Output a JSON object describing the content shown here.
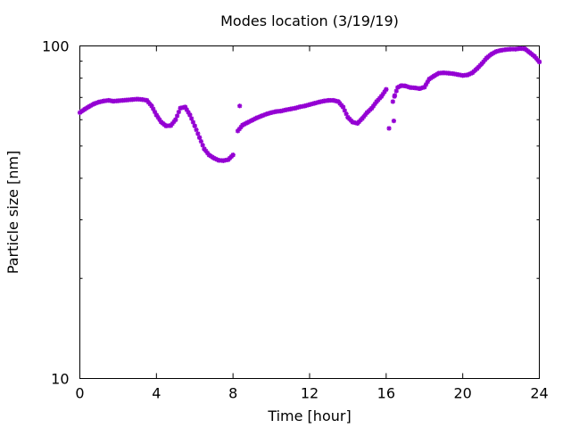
{
  "chart_data": {
    "type": "scatter",
    "title": "Modes location (3/19/19)",
    "xlabel": "Time [hour]",
    "ylabel": "Particle size [nm]",
    "xlim": [
      0,
      24
    ],
    "ylim": [
      10,
      100
    ],
    "yscale": "log",
    "grid": false,
    "legend": "none",
    "x_ticks": [
      0,
      4,
      8,
      12,
      16,
      20,
      24
    ],
    "y_ticks": [
      10,
      100
    ],
    "marker_color": "#9400d3",
    "series": [
      {
        "x": [
          0,
          0.25,
          0.5,
          0.75,
          1,
          1.25,
          1.5,
          1.75,
          2,
          2.25,
          2.5,
          2.75,
          3,
          3.25,
          3.5,
          3.75,
          4,
          4.25,
          4.5,
          4.75,
          5,
          5.25,
          5.5,
          5.75,
          6,
          6.25,
          6.5,
          6.75,
          7,
          7.25,
          7.5,
          7.75,
          8,
          8.25,
          8.5,
          8.75,
          9,
          9.25,
          9.5,
          9.75,
          10,
          10.25,
          10.5,
          10.75,
          11,
          11.25,
          11.5,
          11.75,
          12,
          12.25,
          12.5,
          12.75,
          13,
          13.25,
          13.5,
          13.75,
          14,
          14.25,
          14.5,
          14.75,
          15,
          15.25,
          15.5,
          15.75,
          16,
          16.15,
          16.35,
          16.45,
          16.6,
          16.8,
          17,
          17.25,
          17.5,
          17.75,
          18,
          18.25,
          18.5,
          18.75,
          19,
          19.25,
          19.5,
          19.75,
          20,
          20.25,
          20.5,
          20.75,
          21,
          21.25,
          21.5,
          21.75,
          22,
          22.25,
          22.5,
          22.75,
          23,
          23.25,
          23.5,
          23.75,
          24
        ],
        "y": [
          63,
          64.5,
          65.8,
          67,
          67.8,
          68.3,
          68.6,
          68.2,
          68.4,
          68.6,
          68.8,
          69,
          69.2,
          69,
          68.6,
          66,
          62,
          59,
          57.5,
          57.6,
          60,
          65,
          65.5,
          62,
          57.5,
          53,
          49,
          47,
          46,
          45.3,
          45.2,
          45.5,
          47,
          55.5,
          57.8,
          58.8,
          59.8,
          60.8,
          61.6,
          62.4,
          63,
          63.5,
          63.7,
          64.2,
          64.6,
          65,
          65.6,
          66,
          66.6,
          67.2,
          67.8,
          68.3,
          68.6,
          68.6,
          68,
          65.5,
          61,
          59,
          58.5,
          60.5,
          63,
          65,
          68,
          70.5,
          74,
          56.5,
          68,
          71,
          75,
          76,
          75.8,
          75,
          74.8,
          74.4,
          75.2,
          79.5,
          81.2,
          82.8,
          83,
          82.8,
          82.5,
          82,
          81.5,
          81.8,
          83,
          85.5,
          88.5,
          92,
          94.5,
          96.2,
          97,
          97.5,
          97.8,
          97.8,
          98.2,
          98,
          95.5,
          93,
          89.5
        ],
        "outliers_x": [
          8.35,
          16.4
        ],
        "outliers_y": [
          66,
          59.5
        ]
      }
    ]
  }
}
